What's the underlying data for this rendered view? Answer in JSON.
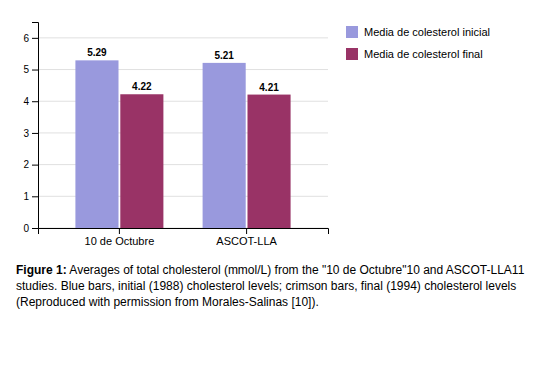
{
  "chart_data": {
    "type": "bar",
    "categories": [
      "10 de Octubre",
      "ASCOT-LLA"
    ],
    "series": [
      {
        "name": "Media de colesterol inicial",
        "color": "#9999DD",
        "values": [
          5.29,
          5.21
        ]
      },
      {
        "name": "Media de colesterol final",
        "color": "#993366",
        "values": [
          4.22,
          4.21
        ]
      }
    ],
    "ylim": [
      0,
      6.5
    ],
    "yticks": [
      0,
      1,
      2,
      3,
      4,
      5,
      6
    ],
    "grid": true,
    "legend": "right",
    "data_labels": true,
    "annotations": [
      "Figure 1:",
      " Averages of total cholesterol (mmol/L) from the \"10 de Octubre\"10 and ASCOT-LLA11 studies. Blue bars, initial (1988) cholesterol levels; crimson bars, final (1994) cholesterol levels (Reproduced with permission from Morales-Salinas [10])."
    ]
  }
}
